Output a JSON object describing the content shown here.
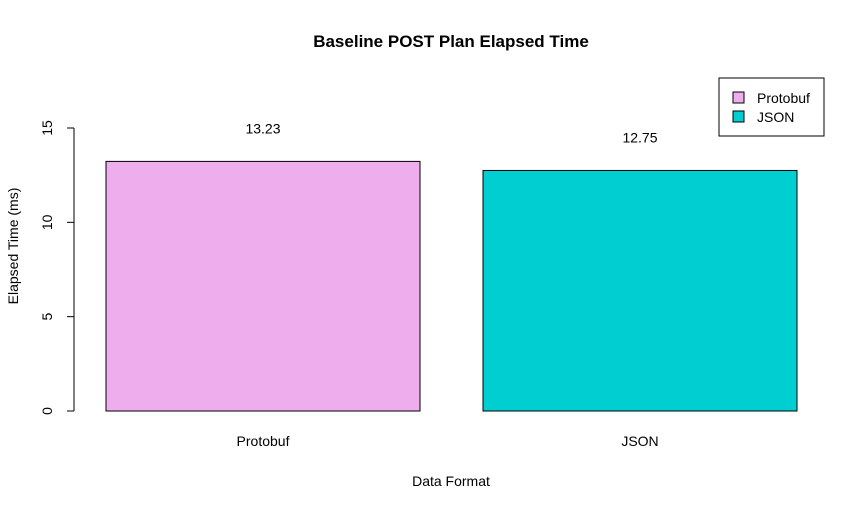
{
  "chart_data": {
    "type": "bar",
    "title": "Baseline POST Plan Elapsed Time",
    "xlabel": "Data Format",
    "ylabel": "Elapsed Time (ms)",
    "categories": [
      "Protobuf",
      "JSON"
    ],
    "values": [
      13.23,
      12.75
    ],
    "data_labels": [
      "13.23",
      "12.75"
    ],
    "colors": [
      "#EEAEEE",
      "#00CED1"
    ],
    "ylim": [
      0,
      15
    ],
    "yticks": [
      0,
      5,
      10,
      15
    ],
    "ytick_labels": [
      "0",
      "5",
      "10",
      "15"
    ],
    "grid": false,
    "legend": {
      "position": "top-right",
      "entries": [
        "Protobuf",
        "JSON"
      ]
    }
  }
}
